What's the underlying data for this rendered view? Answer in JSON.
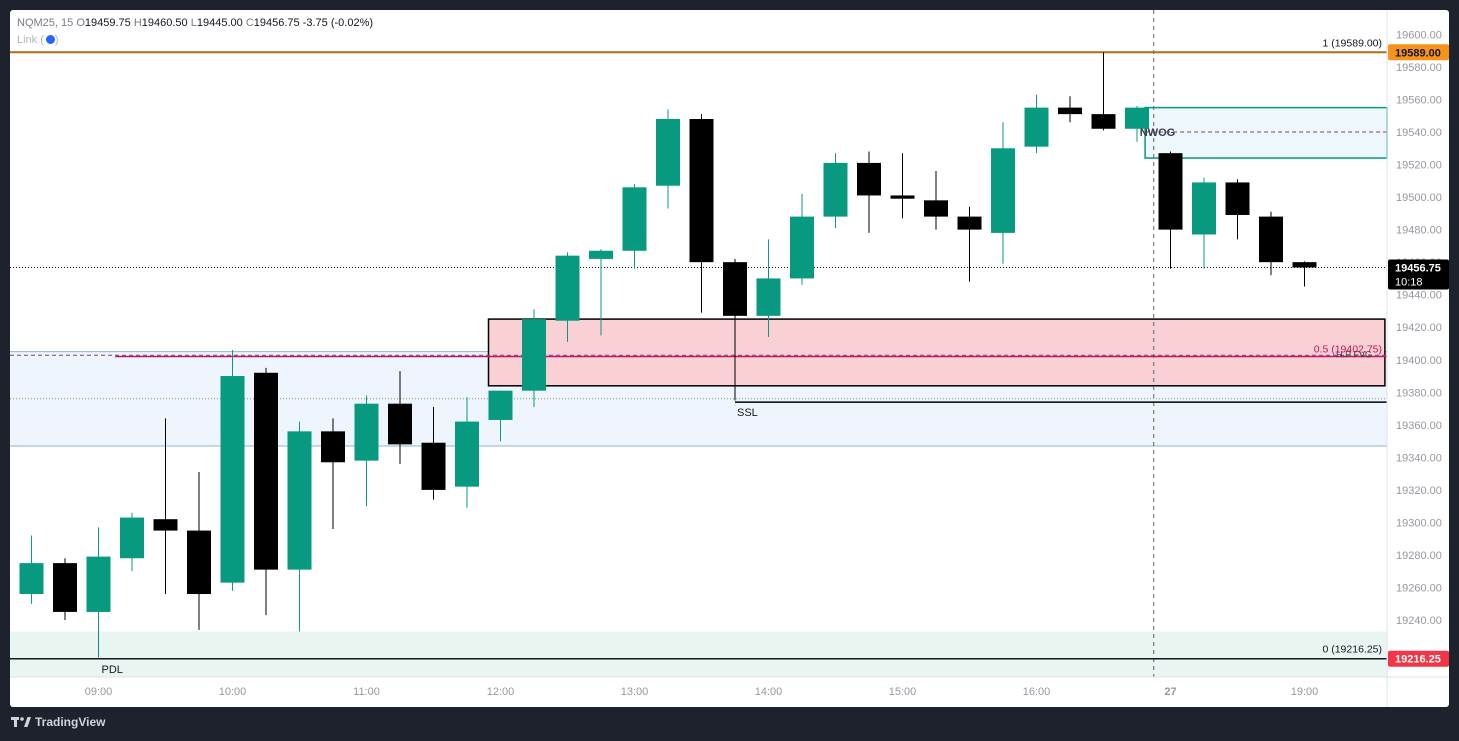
{
  "header": {
    "symbol": "NQM25, 15",
    "open_label": "O",
    "open": "19459.75",
    "high_label": "H",
    "high": "19460.50",
    "low_label": "L",
    "low": "19445.00",
    "close_label": "C",
    "close": "19456.75",
    "change": "-3.75 (-0.02%)",
    "link_label": "Link"
  },
  "footer": {
    "brand": "TradingView"
  },
  "colors": {
    "bull": "#089981",
    "bear": "#000000",
    "fib_line": "#b26b1a",
    "fib_tag": "#f7931a",
    "low_tag": "#f23645",
    "nwog": "#089981",
    "fvg_fill": "#f9d0d4",
    "fvg_line": "#c2185b"
  },
  "chart_data": {
    "type": "candlestick",
    "symbol": "NQM25",
    "interval": "15",
    "ylim": [
      19205,
      19615
    ],
    "y_ticks": [
      19240,
      19260,
      19280,
      19300,
      19320,
      19340,
      19360,
      19380,
      19400,
      19420,
      19440,
      19460,
      19480,
      19500,
      19520,
      19540,
      19560,
      19580,
      19600
    ],
    "x_ticks": [
      {
        "label": "09:00",
        "bar": 2
      },
      {
        "label": "10:00",
        "bar": 6
      },
      {
        "label": "11:00",
        "bar": 10
      },
      {
        "label": "12:00",
        "bar": 14
      },
      {
        "label": "13:00",
        "bar": 18
      },
      {
        "label": "14:00",
        "bar": 22
      },
      {
        "label": "15:00",
        "bar": 26
      },
      {
        "label": "16:00",
        "bar": 30
      },
      {
        "label": "27",
        "bar": 34
      },
      {
        "label": "19:00",
        "bar": 38
      }
    ],
    "day_divider_bar": 33.5,
    "candles": [
      {
        "o": 19256,
        "h": 19292,
        "l": 19250,
        "c": 19275
      },
      {
        "o": 19275,
        "h": 19278,
        "l": 19240,
        "c": 19245
      },
      {
        "o": 19245,
        "h": 19297,
        "l": 19217,
        "c": 19279
      },
      {
        "o": 19278,
        "h": 19306,
        "l": 19270,
        "c": 19303
      },
      {
        "o": 19302,
        "h": 19364,
        "l": 19256,
        "c": 19295
      },
      {
        "o": 19295,
        "h": 19331,
        "l": 19234,
        "c": 19256
      },
      {
        "o": 19263,
        "h": 19406,
        "l": 19258,
        "c": 19390
      },
      {
        "o": 19392,
        "h": 19395,
        "l": 19243,
        "c": 19271
      },
      {
        "o": 19271,
        "h": 19362,
        "l": 19233,
        "c": 19356
      },
      {
        "o": 19356,
        "h": 19364,
        "l": 19296,
        "c": 19337
      },
      {
        "o": 19338,
        "h": 19378,
        "l": 19310,
        "c": 19373
      },
      {
        "o": 19373,
        "h": 19393,
        "l": 19336,
        "c": 19348
      },
      {
        "o": 19349,
        "h": 19371,
        "l": 19314,
        "c": 19320
      },
      {
        "o": 19322,
        "h": 19377,
        "l": 19309,
        "c": 19362
      },
      {
        "o": 19363,
        "h": 19381,
        "l": 19350,
        "c": 19381
      },
      {
        "o": 19381,
        "h": 19431,
        "l": 19371,
        "c": 19425
      },
      {
        "o": 19424,
        "h": 19466,
        "l": 19411,
        "c": 19464
      },
      {
        "o": 19462,
        "h": 19468,
        "l": 19415,
        "c": 19467
      },
      {
        "o": 19467,
        "h": 19508,
        "l": 19456,
        "c": 19506
      },
      {
        "o": 19507,
        "h": 19554,
        "l": 19493,
        "c": 19548
      },
      {
        "o": 19548,
        "h": 19551,
        "l": 19429,
        "c": 19460
      },
      {
        "o": 19460,
        "h": 19462,
        "l": 19375,
        "c": 19427
      },
      {
        "o": 19427,
        "h": 19474,
        "l": 19414,
        "c": 19450
      },
      {
        "o": 19450,
        "h": 19502,
        "l": 19446,
        "c": 19488
      },
      {
        "o": 19488,
        "h": 19527,
        "l": 19481,
        "c": 19521
      },
      {
        "o": 19521,
        "h": 19528,
        "l": 19478,
        "c": 19501
      },
      {
        "o": 19501,
        "h": 19527,
        "l": 19487,
        "c": 19499
      },
      {
        "o": 19498,
        "h": 19516,
        "l": 19480,
        "c": 19488
      },
      {
        "o": 19488,
        "h": 19494,
        "l": 19448,
        "c": 19480
      },
      {
        "o": 19478,
        "h": 19546,
        "l": 19459,
        "c": 19530
      },
      {
        "o": 19531,
        "h": 19563,
        "l": 19527,
        "c": 19555
      },
      {
        "o": 19555,
        "h": 19562,
        "l": 19546,
        "c": 19551
      },
      {
        "o": 19551,
        "h": 19589,
        "l": 19541,
        "c": 19542
      },
      {
        "o": 19542,
        "h": 19556,
        "l": 19534,
        "c": 19555
      },
      {
        "o": 19527,
        "h": 19528,
        "l": 19456,
        "c": 19480
      },
      {
        "o": 19477,
        "h": 19512,
        "l": 19456,
        "c": 19509
      },
      {
        "o": 19509,
        "h": 19511,
        "l": 19474,
        "c": 19489
      },
      {
        "o": 19488,
        "h": 19491,
        "l": 19452,
        "c": 19460
      },
      {
        "o": 19460,
        "h": 19460.5,
        "l": 19445,
        "c": 19456.75
      }
    ],
    "annotations": {
      "fib_level_1": {
        "price": 19589.0,
        "label": "1 (19589.00)",
        "tag": "19589.00"
      },
      "fib_level_0": {
        "price": 19216.25,
        "label": "0 (19216.25)",
        "tag": "19216.25"
      },
      "fib_level_05": {
        "price": 19402.75,
        "label": "0.5 (19402.75)"
      },
      "last_price": {
        "price": 19456.75,
        "tag": "19456.75",
        "countdown": "10:18"
      },
      "nwog": {
        "label": "NWOG",
        "top": 19555,
        "bottom": 19524,
        "mid": 19540,
        "from_bar": 33.6
      },
      "fvg": {
        "label": "H.P FVG",
        "top": 19425,
        "bottom": 19384,
        "from_bar": 14,
        "to_bar": 40.4,
        "line": 19402
      },
      "ssl": {
        "label": "SSL",
        "price": 19374,
        "from_bar": 21
      },
      "pdl": {
        "label": "PDL",
        "price": 19216,
        "from_bar": 2
      },
      "band_blue": {
        "top": 19405,
        "bottom": 19347,
        "dotted": 19376
      },
      "band_green": {
        "top": 19233,
        "bottom": 19205
      }
    }
  }
}
